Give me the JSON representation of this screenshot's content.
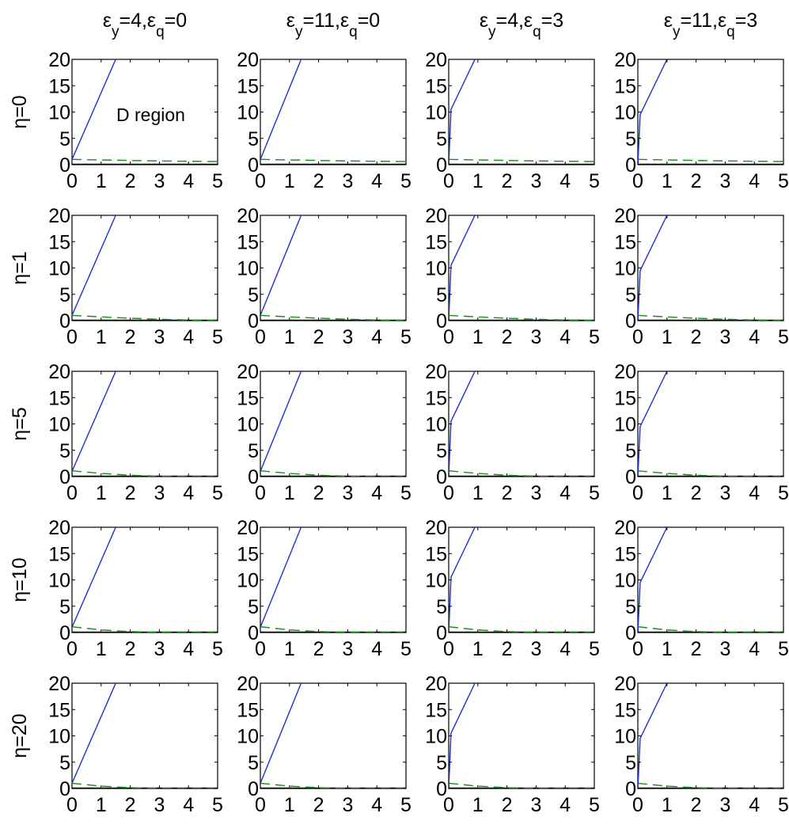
{
  "chart_data": {
    "type": "line",
    "layout": "grid",
    "rows": 5,
    "cols": 4,
    "column_titles": [
      {
        "eps_y": "4",
        "eps_q": "0"
      },
      {
        "eps_y": "11",
        "eps_q": "0"
      },
      {
        "eps_y": "4",
        "eps_q": "3"
      },
      {
        "eps_y": "11",
        "eps_q": "3"
      }
    ],
    "row_labels": [
      "η=0",
      "η=1",
      "η=5",
      "η=10",
      "η=20"
    ],
    "annotation": "D region",
    "xlim": [
      0,
      5
    ],
    "ylim": [
      0,
      20
    ],
    "xticks": [
      "0",
      "1",
      "2",
      "3",
      "4",
      "5"
    ],
    "yticks": [
      "0",
      "5",
      "10",
      "15",
      "20"
    ],
    "grid": false,
    "colors": {
      "solid": "#1f2fd0",
      "dashed": "#1a8a1a",
      "baseline": "#000000"
    },
    "column_curves": [
      {
        "solid": {
          "x": [
            0,
            1.5
          ],
          "y": [
            1,
            20
          ]
        }
      },
      {
        "solid": {
          "x": [
            0,
            1.4
          ],
          "y": [
            1,
            20
          ]
        }
      },
      {
        "solid": {
          "x": [
            0,
            0.08,
            0.9
          ],
          "y": [
            0,
            10.5,
            20
          ]
        }
      },
      {
        "solid": {
          "x": [
            0,
            0.08,
            1.0
          ],
          "y": [
            0,
            9.5,
            20
          ]
        }
      }
    ],
    "row_dashed": [
      {
        "x": [
          0,
          1,
          2,
          3,
          4,
          5
        ],
        "y": [
          1.0,
          0.9,
          0.8,
          0.7,
          0.65,
          0.6
        ]
      },
      {
        "x": [
          0,
          1,
          2,
          3,
          4,
          5
        ],
        "y": [
          1.0,
          0.7,
          0.45,
          0.25,
          0.12,
          0.05
        ]
      },
      {
        "x": [
          0,
          1,
          2,
          3,
          4,
          5
        ],
        "y": [
          1.1,
          0.6,
          0.25,
          0.08,
          0.02,
          0.0
        ]
      },
      {
        "x": [
          0,
          1,
          2,
          3,
          4,
          5
        ],
        "y": [
          1.1,
          0.5,
          0.18,
          0.05,
          0.0,
          0.0
        ]
      },
      {
        "x": [
          0,
          1,
          2,
          3,
          4,
          5
        ],
        "y": [
          1.0,
          0.45,
          0.15,
          0.03,
          0.0,
          0.0
        ]
      }
    ]
  }
}
